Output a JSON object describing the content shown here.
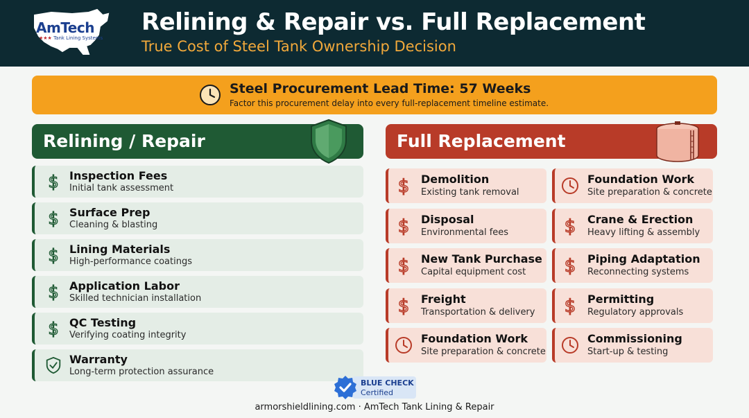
{
  "brand": {
    "logo_text": "AmTech",
    "logo_subtext": "Tank Lining Systems",
    "logo_stars": "★★★"
  },
  "header": {
    "title": "Relining & Repair vs. Full Replacement",
    "subtitle": "True Cost of Steel Tank Ownership Decision"
  },
  "banner": {
    "icon": "clock-icon",
    "title": "Steel Procurement Lead Time: 57 Weeks",
    "text": "Factor this procurement delay into every full-replacement timeline estimate."
  },
  "relining": {
    "title": "Relining / Repair",
    "icon": "shield-icon",
    "items": [
      {
        "title": "Inspection Fees",
        "subtitle": "Initial tank assessment",
        "icon": "dollar-icon"
      },
      {
        "title": "Surface Prep",
        "subtitle": "Cleaning & blasting",
        "icon": "dollar-icon"
      },
      {
        "title": "Lining Materials",
        "subtitle": "High-performance coatings",
        "icon": "dollar-icon"
      },
      {
        "title": "Application Labor",
        "subtitle": "Skilled technician installation",
        "icon": "dollar-icon"
      },
      {
        "title": "QC Testing",
        "subtitle": "Verifying coating integrity",
        "icon": "dollar-icon"
      },
      {
        "title": "Warranty",
        "subtitle": "Long-term protection assurance",
        "icon": "shield-check-icon"
      }
    ]
  },
  "replacement": {
    "title": "Full Replacement",
    "icon": "tank-icon",
    "items": [
      {
        "title": "Demolition",
        "subtitle": "Existing tank removal",
        "icon": "dollar-icon"
      },
      {
        "title": "Foundation Work",
        "subtitle": "Site preparation & concrete",
        "icon": "clock-icon"
      },
      {
        "title": "Disposal",
        "subtitle": "Environmental fees",
        "icon": "dollar-icon"
      },
      {
        "title": "Crane & Erection",
        "subtitle": "Heavy lifting & assembly",
        "icon": "dollar-icon"
      },
      {
        "title": "New Tank Purchase",
        "subtitle": "Capital equipment cost",
        "icon": "dollar-icon"
      },
      {
        "title": "Piping Adaptation",
        "subtitle": "Reconnecting systems",
        "icon": "dollar-icon"
      },
      {
        "title": "Freight",
        "subtitle": "Transportation & delivery",
        "icon": "dollar-icon"
      },
      {
        "title": "Permitting",
        "subtitle": "Regulatory approvals",
        "icon": "dollar-icon"
      },
      {
        "title": "Foundation Work",
        "subtitle": "Site preparation & concrete",
        "icon": "clock-icon"
      },
      {
        "title": "Commissioning",
        "subtitle": "Start-up & testing",
        "icon": "clock-icon"
      }
    ]
  },
  "badge": {
    "line1": "BLUE CHECK",
    "line2": "Certified",
    "icon": "check-seal-icon"
  },
  "footer": {
    "text": "armorshieldlining.com · AmTech Tank Lining & Repair"
  },
  "colors": {
    "header_bg": "#0d2a32",
    "accent_orange": "#f4a01d",
    "green": "#1f5a34",
    "red": "#b83b28"
  }
}
